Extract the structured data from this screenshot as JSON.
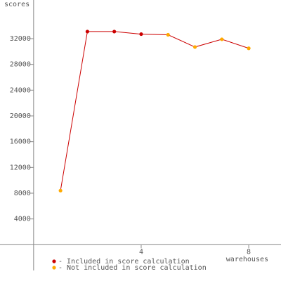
{
  "chart_data": {
    "type": "line",
    "y_label": "scores",
    "x_label": "warehouses",
    "x": [
      1,
      2,
      3,
      4,
      5,
      6,
      7,
      8
    ],
    "values": [
      8400,
      33100,
      33100,
      32700,
      32600,
      30700,
      31900,
      30500
    ],
    "included": [
      false,
      true,
      true,
      true,
      false,
      false,
      false,
      false
    ],
    "line_color": "#cc0000",
    "legend": [
      {
        "label": "- Included in score calculation",
        "color": "#cc0000"
      },
      {
        "label": "- Not included in score calculation",
        "color": "#ffaa00"
      }
    ],
    "xlim": [
      -1.25,
      9.2
    ],
    "xticks": [
      4,
      8
    ],
    "ylim": [
      -4000,
      38000
    ],
    "yticks": [
      4000,
      8000,
      12000,
      16000,
      20000,
      24000,
      28000,
      32000
    ]
  }
}
